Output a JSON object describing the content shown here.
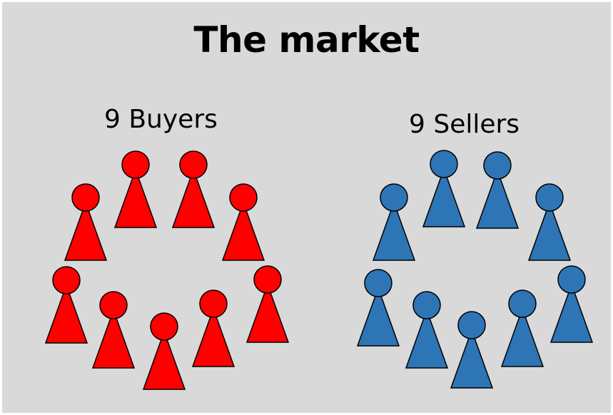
{
  "title": "The market",
  "buyers": {
    "label": "9 Buyers",
    "count": 9,
    "color": "#ff0000"
  },
  "sellers": {
    "label": "9 Sellers",
    "count": 9,
    "color": "#2e75b6"
  },
  "colors": {
    "background": "#d9d9d9",
    "outline": "#000000"
  },
  "icons": {
    "person": "person-icon"
  }
}
